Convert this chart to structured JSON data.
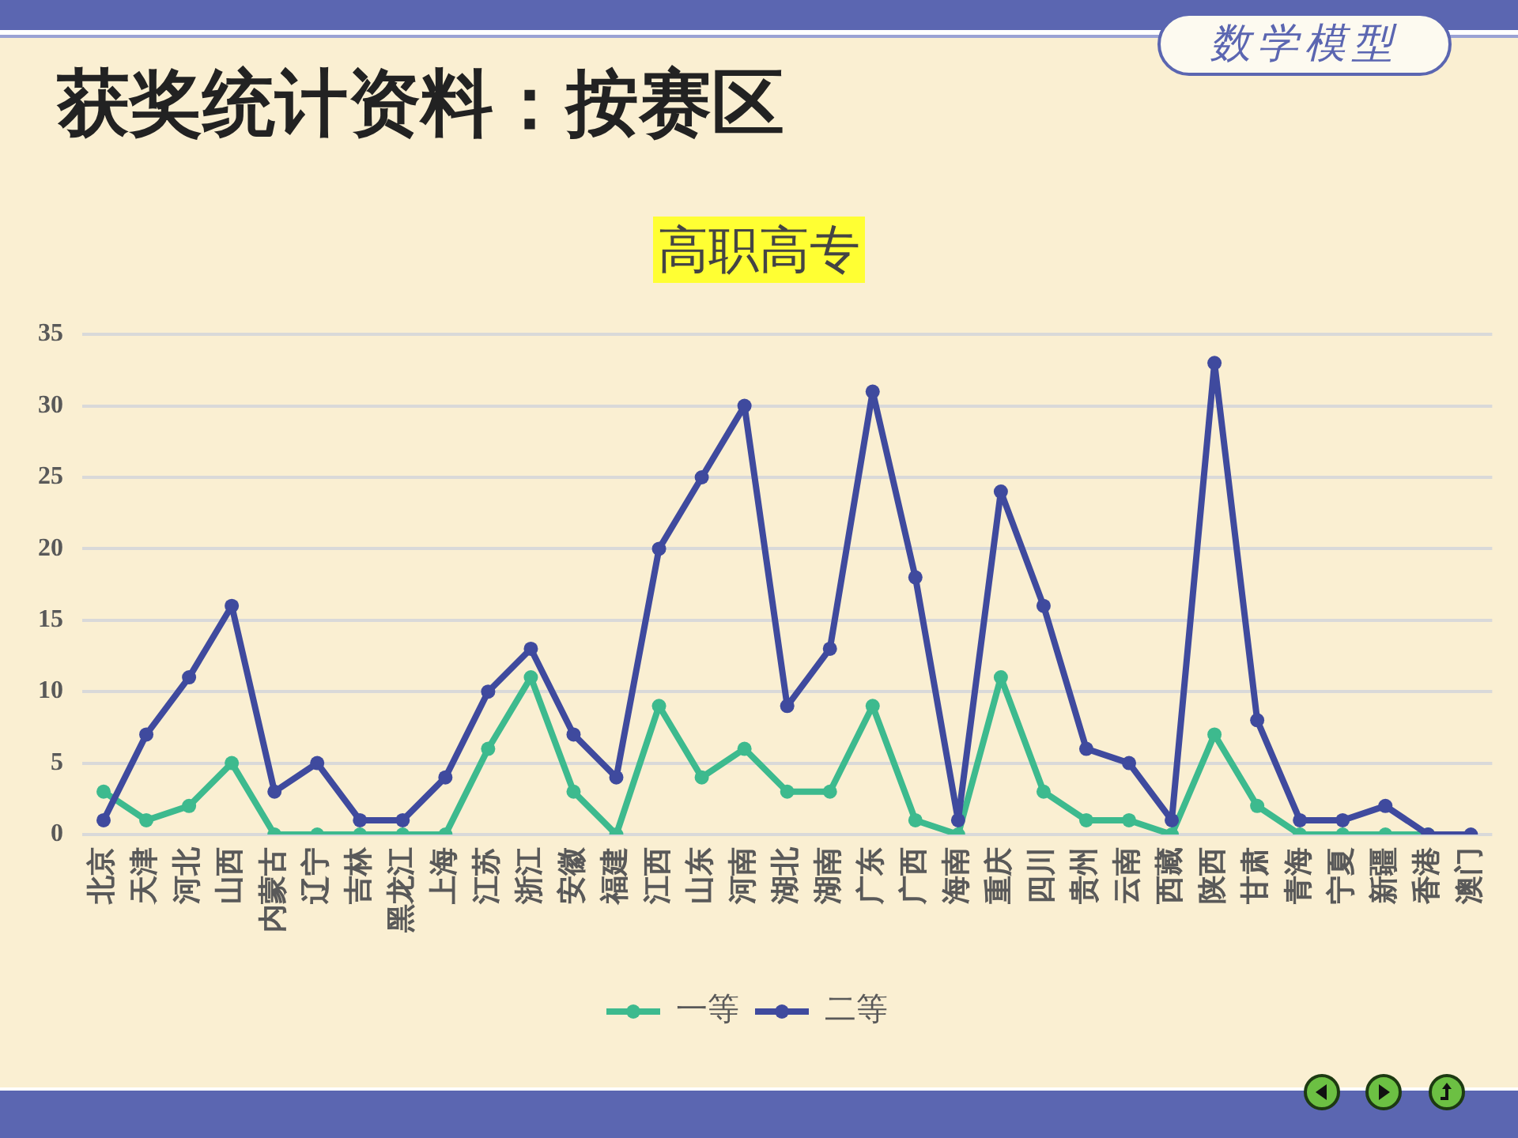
{
  "chart_data": {
    "type": "line",
    "title": "获奖统计资料：按赛区",
    "subtitle": "高职高专",
    "annotations": [
      "数学模型"
    ],
    "categories": [
      "北京",
      "天津",
      "河北",
      "山西",
      "内蒙古",
      "辽宁",
      "吉林",
      "黑龙江",
      "上海",
      "江苏",
      "浙江",
      "安徽",
      "福建",
      "江西",
      "山东",
      "河南",
      "湖北",
      "湖南",
      "广东",
      "广西",
      "海南",
      "重庆",
      "四川",
      "贵州",
      "云南",
      "西藏",
      "陕西",
      "甘肃",
      "青海",
      "宁夏",
      "新疆",
      "香港",
      "澳门"
    ],
    "series": [
      {
        "name": "一等",
        "color": "#3dba8e",
        "values": [
          3,
          1,
          2,
          5,
          0,
          0,
          0,
          0,
          0,
          6,
          11,
          3,
          0,
          9,
          4,
          6,
          3,
          3,
          9,
          1,
          0,
          11,
          3,
          1,
          1,
          0,
          7,
          2,
          0,
          0,
          0,
          0,
          null
        ]
      },
      {
        "name": "二等",
        "color": "#3f4a9e",
        "values": [
          1,
          7,
          11,
          16,
          3,
          5,
          1,
          1,
          4,
          10,
          13,
          7,
          4,
          20,
          25,
          30,
          9,
          13,
          31,
          18,
          1,
          24,
          16,
          6,
          5,
          1,
          33,
          8,
          1,
          1,
          2,
          0,
          0
        ]
      }
    ],
    "ylim": [
      0,
      35
    ],
    "yticks": [
      0,
      5,
      10,
      15,
      20,
      25,
      30,
      35
    ],
    "grid": "y",
    "legend": "bottom",
    "marker": "circle",
    "line_style": "solid"
  }
}
